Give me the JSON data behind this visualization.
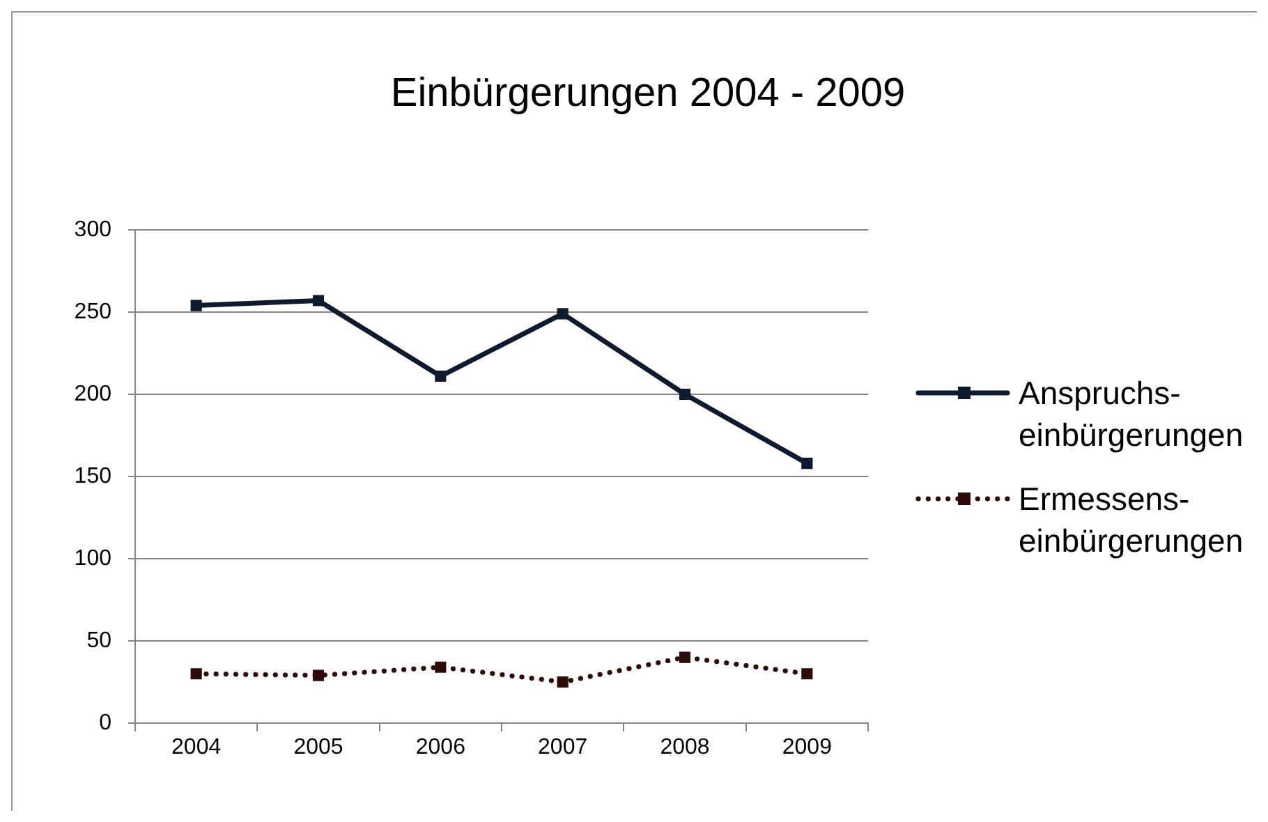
{
  "chart_data": {
    "type": "line",
    "title": "Einbürgerungen 2004 - 2009",
    "categories": [
      "2004",
      "2005",
      "2006",
      "2007",
      "2008",
      "2009"
    ],
    "series": [
      {
        "name": "Anspruchs-einbürgerungen",
        "color": "#0f1a2e",
        "values": [
          254,
          257,
          211,
          249,
          200,
          158
        ],
        "line_style": "solid"
      },
      {
        "name": "Ermessens-einbürgerungen",
        "color": "#2e0b0b",
        "values": [
          30,
          29,
          34,
          25,
          40,
          30
        ],
        "line_style": "dotted"
      }
    ],
    "ylim": [
      0,
      300
    ],
    "yticks": [
      0,
      50,
      100,
      150,
      200,
      250,
      300
    ],
    "grid": "y",
    "legend": "right",
    "marker": "square"
  }
}
